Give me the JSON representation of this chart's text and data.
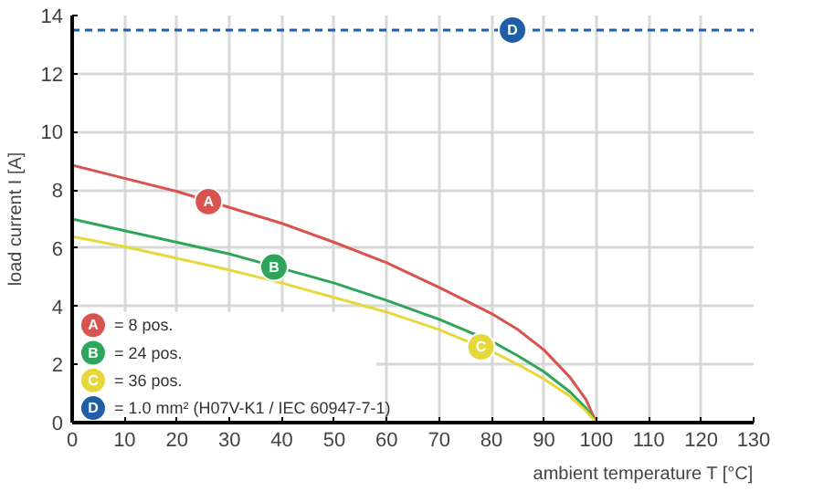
{
  "chart_data": {
    "type": "line",
    "xlabel": "ambient temperature T [°C]",
    "ylabel": "load current I [A]",
    "x": [
      0,
      10,
      20,
      30,
      40,
      50,
      60,
      70,
      80,
      85,
      90,
      95,
      98,
      100
    ],
    "series": [
      {
        "name": "= 8 pos.",
        "color": "#d9534f",
        "values": [
          8.85,
          8.4,
          7.95,
          7.4,
          6.85,
          6.2,
          5.5,
          4.65,
          3.75,
          3.2,
          2.5,
          1.55,
          0.8,
          0
        ]
      },
      {
        "name": "= 24 pos.",
        "color": "#2ea55a",
        "x": [
          0,
          10,
          20,
          30,
          45,
          50,
          60,
          70,
          80,
          85,
          90,
          95,
          98,
          100
        ],
        "values": [
          7.0,
          6.6,
          6.2,
          5.8,
          5.05,
          4.8,
          4.2,
          3.55,
          2.8,
          2.3,
          1.75,
          1.05,
          0.5,
          0
        ]
      },
      {
        "name": "= 36 pos.",
        "color": "#e6d83a",
        "values": [
          6.4,
          6.05,
          5.65,
          5.25,
          4.8,
          4.3,
          3.8,
          3.2,
          2.45,
          2.0,
          1.5,
          0.9,
          0.4,
          0
        ]
      },
      {
        "name": "= 1.0 mm² (H07V-K1 / IEC 60947-7-1)",
        "color": "#1f5fa8",
        "line_style": "dashed",
        "x": [
          0,
          130
        ],
        "values": [
          13.5,
          13.5
        ]
      }
    ],
    "annotations": [
      {
        "text": "A",
        "x": 26,
        "y": 7.6
      },
      {
        "text": "B",
        "x": 38.5,
        "y": 5.35
      },
      {
        "text": "C",
        "x": 78,
        "y": 2.6
      },
      {
        "text": "D",
        "x": 84,
        "y": 13.5
      }
    ],
    "xlim": [
      0,
      130
    ],
    "ylim": [
      0,
      14
    ],
    "xticks": [
      0,
      10,
      20,
      30,
      40,
      50,
      60,
      70,
      80,
      90,
      100,
      110,
      120,
      130
    ],
    "yticks": [
      0,
      2,
      4,
      6,
      8,
      10,
      12,
      14
    ],
    "grid": true,
    "legend": "bottom left",
    "line_style": "solid",
    "marker": "none"
  }
}
